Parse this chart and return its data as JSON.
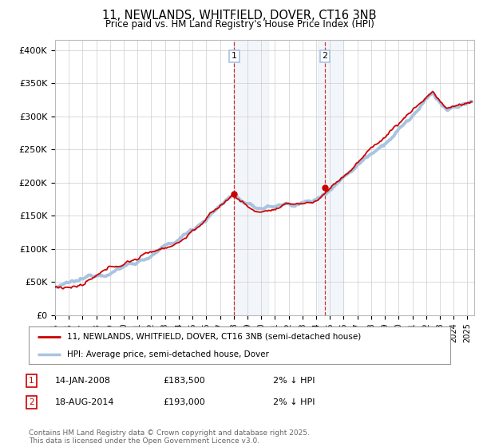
{
  "title": "11, NEWLANDS, WHITFIELD, DOVER, CT16 3NB",
  "subtitle": "Price paid vs. HM Land Registry's House Price Index (HPI)",
  "ylabel_ticks": [
    "£0",
    "£50K",
    "£100K",
    "£150K",
    "£200K",
    "£250K",
    "£300K",
    "£350K",
    "£400K"
  ],
  "ytick_values": [
    0,
    50000,
    100000,
    150000,
    200000,
    250000,
    300000,
    350000,
    400000
  ],
  "ylim": [
    0,
    415000
  ],
  "xlim_start": 1995.0,
  "xlim_end": 2025.5,
  "hpi_color": "#a8c4e0",
  "price_color": "#cc0000",
  "shaded_region1": [
    2008.04,
    2010.5
  ],
  "shaded_region2": [
    2014.1,
    2016.0
  ],
  "sale1_x": 2008.04,
  "sale1_y": 183500,
  "sale2_x": 2014.63,
  "sale2_y": 193000,
  "legend_label1": "11, NEWLANDS, WHITFIELD, DOVER, CT16 3NB (semi-detached house)",
  "legend_label2": "HPI: Average price, semi-detached house, Dover",
  "note1_text": "14-JAN-2008",
  "note1_price": "£183,500",
  "note1_hpi": "2% ↓ HPI",
  "note2_text": "18-AUG-2014",
  "note2_price": "£193,000",
  "note2_hpi": "2% ↓ HPI",
  "footer": "Contains HM Land Registry data © Crown copyright and database right 2025.\nThis data is licensed under the Open Government Licence v3.0.",
  "background_color": "#ffffff",
  "grid_color": "#cccccc"
}
